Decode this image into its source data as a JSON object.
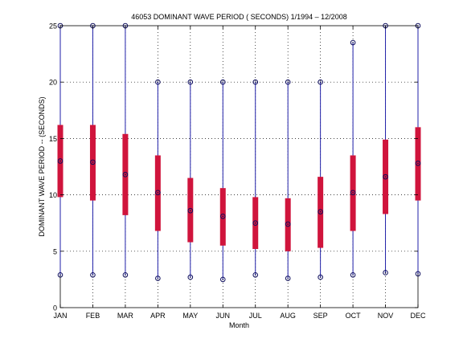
{
  "chart_data": {
    "type": "box",
    "title": "46053  DOMINANT WAVE PERIOD ( SECONDS) 1/1994 – 12/2008",
    "xlabel": "Month",
    "ylabel": "DOMINANT WAVE PERIOD  --  (SECONDS)",
    "ylim": [
      0,
      25
    ],
    "yticks": [
      0,
      5,
      10,
      15,
      20,
      25
    ],
    "grid": true,
    "categories": [
      "JAN",
      "FEB",
      "MAR",
      "APR",
      "MAY",
      "JUN",
      "JUL",
      "AUG",
      "SEP",
      "OCT",
      "NOV",
      "DEC"
    ],
    "stats": {
      "min": [
        2.9,
        2.9,
        2.9,
        2.6,
        2.7,
        2.5,
        2.9,
        2.6,
        2.7,
        2.9,
        3.1,
        3.0
      ],
      "q1": [
        9.8,
        9.5,
        8.2,
        6.8,
        5.8,
        5.5,
        5.2,
        5.0,
        5.3,
        6.8,
        8.3,
        9.5
      ],
      "median": [
        13.0,
        12.9,
        11.8,
        10.2,
        8.6,
        8.1,
        7.5,
        7.4,
        8.5,
        10.2,
        11.6,
        12.8
      ],
      "q3": [
        16.2,
        16.2,
        15.4,
        13.5,
        11.5,
        10.6,
        9.8,
        9.7,
        11.6,
        13.5,
        14.9,
        16.0
      ],
      "max": [
        25.0,
        25.0,
        25.0,
        20.0,
        20.0,
        20.0,
        20.0,
        20.0,
        20.0,
        23.5,
        25.0,
        25.0
      ]
    },
    "colors": {
      "whisker": "#1f1fa8",
      "box": "#d0143c",
      "marker": "#0d0d5c",
      "grid": "#000000"
    }
  }
}
